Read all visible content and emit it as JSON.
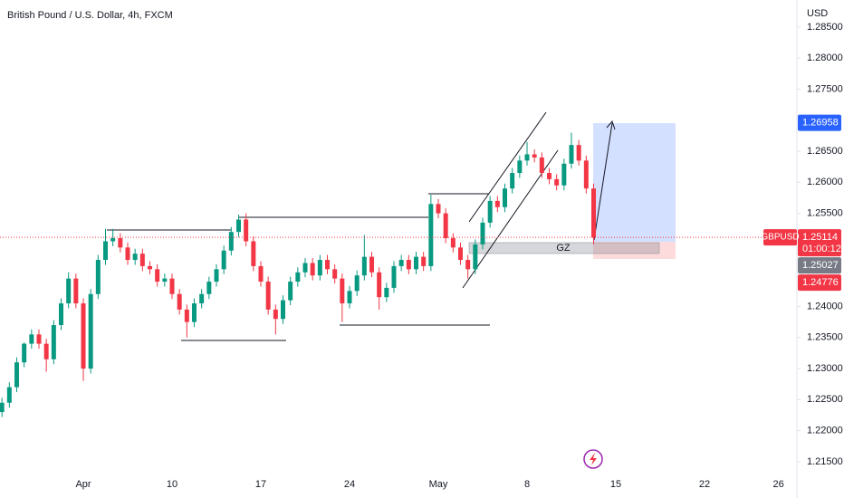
{
  "chart_data": {
    "type": "candlestick",
    "title": "British Pound / U.S. Dollar, 4h, FXCM",
    "y_unit": "USD",
    "zone_label": "GZ",
    "up_color": "#089981",
    "down_color": "#f23645",
    "ylim": [
      1.2128,
      1.2879
    ],
    "yticks": [
      {
        "value": 1.285,
        "label": "1.28500"
      },
      {
        "value": 1.28,
        "label": "1.28000"
      },
      {
        "value": 1.275,
        "label": "1.27500"
      },
      {
        "value": 1.265,
        "label": "1.26500"
      },
      {
        "value": 1.26,
        "label": "1.26000"
      },
      {
        "value": 1.255,
        "label": "1.25500"
      },
      {
        "value": 1.24,
        "label": "1.24000"
      },
      {
        "value": 1.235,
        "label": "1.23500"
      },
      {
        "value": 1.23,
        "label": "1.23000"
      },
      {
        "value": 1.225,
        "label": "1.22500"
      },
      {
        "value": 1.22,
        "label": "1.22000"
      },
      {
        "value": 1.215,
        "label": "1.21500"
      }
    ],
    "grid": false,
    "categories": [
      null,
      null,
      null,
      null,
      null,
      null,
      null,
      null,
      null,
      null,
      null,
      "Apr",
      null,
      null,
      null,
      null,
      null,
      null,
      null,
      null,
      null,
      null,
      null,
      "10",
      null,
      null,
      null,
      null,
      null,
      null,
      null,
      null,
      null,
      null,
      null,
      "17",
      null,
      null,
      null,
      null,
      null,
      null,
      null,
      null,
      null,
      null,
      null,
      "24",
      null,
      null,
      null,
      null,
      null,
      null,
      null,
      null,
      null,
      null,
      null,
      "May",
      null,
      null,
      null,
      null,
      null,
      null,
      null,
      null,
      null,
      null,
      null,
      "8",
      null,
      null,
      null,
      null,
      null,
      null,
      null,
      null,
      null,
      null,
      null,
      "15",
      null,
      null,
      null,
      null,
      null,
      null,
      null,
      null,
      null,
      null,
      null,
      "22",
      null,
      null,
      null,
      null,
      null,
      null,
      null,
      null,
      null,
      "26"
    ],
    "ohlc": [
      [
        1.223,
        1.2253,
        1.2222,
        1.2245
      ],
      [
        1.2245,
        1.2278,
        1.2237,
        1.227
      ],
      [
        1.227,
        1.2318,
        1.2262,
        1.231
      ],
      [
        1.231,
        1.2342,
        1.2302,
        1.234
      ],
      [
        1.234,
        1.2363,
        1.2332,
        1.2355
      ],
      [
        1.2355,
        1.2363,
        1.2332,
        1.234
      ],
      [
        1.234,
        1.2348,
        1.2295,
        1.2315
      ],
      [
        1.2315,
        1.2378,
        1.2307,
        1.237
      ],
      [
        1.237,
        1.2413,
        1.2362,
        1.2405
      ],
      [
        1.2405,
        1.2455,
        1.2397,
        1.2445
      ],
      [
        1.2445,
        1.2453,
        1.2397,
        1.2405
      ],
      [
        1.2405,
        1.2413,
        1.228,
        1.23
      ],
      [
        1.23,
        1.2428,
        1.2292,
        1.242
      ],
      [
        1.242,
        1.2483,
        1.2412,
        1.2475
      ],
      [
        1.2475,
        1.2525,
        1.2467,
        1.2505
      ],
      [
        1.2505,
        1.2525,
        1.2497,
        1.251
      ],
      [
        1.251,
        1.2518,
        1.2487,
        1.2495
      ],
      [
        1.2495,
        1.2503,
        1.2467,
        1.2475
      ],
      [
        1.2475,
        1.2493,
        1.2467,
        1.2485
      ],
      [
        1.2485,
        1.2493,
        1.2457,
        1.2465
      ],
      [
        1.2465,
        1.2473,
        1.2452,
        1.246
      ],
      [
        1.246,
        1.2468,
        1.2432,
        1.244
      ],
      [
        1.244,
        1.2453,
        1.2432,
        1.2445
      ],
      [
        1.2445,
        1.2453,
        1.2412,
        1.242
      ],
      [
        1.242,
        1.2428,
        1.2387,
        1.2395
      ],
      [
        1.2395,
        1.2403,
        1.235,
        1.2375
      ],
      [
        1.2375,
        1.2413,
        1.2367,
        1.2405
      ],
      [
        1.2405,
        1.2428,
        1.2397,
        1.242
      ],
      [
        1.242,
        1.2448,
        1.2412,
        1.244
      ],
      [
        1.244,
        1.2468,
        1.2432,
        1.246
      ],
      [
        1.246,
        1.2498,
        1.2452,
        1.249
      ],
      [
        1.249,
        1.2528,
        1.2482,
        1.252
      ],
      [
        1.252,
        1.2548,
        1.2512,
        1.254
      ],
      [
        1.254,
        1.255,
        1.2497,
        1.2505
      ],
      [
        1.2505,
        1.2513,
        1.2457,
        1.2465
      ],
      [
        1.2465,
        1.2473,
        1.2432,
        1.244
      ],
      [
        1.244,
        1.2448,
        1.2387,
        1.2395
      ],
      [
        1.2395,
        1.2403,
        1.2355,
        1.238
      ],
      [
        1.238,
        1.2418,
        1.2372,
        1.241
      ],
      [
        1.241,
        1.2448,
        1.2402,
        1.244
      ],
      [
        1.244,
        1.2463,
        1.2432,
        1.2455
      ],
      [
        1.2455,
        1.2478,
        1.2447,
        1.247
      ],
      [
        1.247,
        1.2478,
        1.2442,
        1.245
      ],
      [
        1.245,
        1.2483,
        1.2442,
        1.2475
      ],
      [
        1.2475,
        1.2483,
        1.2452,
        1.246
      ],
      [
        1.246,
        1.2468,
        1.2437,
        1.2445
      ],
      [
        1.2445,
        1.2453,
        1.2375,
        1.2405
      ],
      [
        1.2405,
        1.2433,
        1.2397,
        1.2425
      ],
      [
        1.2425,
        1.2458,
        1.2417,
        1.245
      ],
      [
        1.245,
        1.2515,
        1.2442,
        1.248
      ],
      [
        1.248,
        1.2488,
        1.2447,
        1.2455
      ],
      [
        1.2455,
        1.2463,
        1.2395,
        1.2415
      ],
      [
        1.2415,
        1.2438,
        1.2407,
        1.243
      ],
      [
        1.243,
        1.2473,
        1.2422,
        1.2465
      ],
      [
        1.2465,
        1.2483,
        1.2457,
        1.2475
      ],
      [
        1.2475,
        1.2483,
        1.2452,
        1.246
      ],
      [
        1.246,
        1.2488,
        1.2452,
        1.248
      ],
      [
        1.248,
        1.2488,
        1.2457,
        1.2465
      ],
      [
        1.2465,
        1.258,
        1.2457,
        1.2565
      ],
      [
        1.2565,
        1.2573,
        1.2542,
        1.255
      ],
      [
        1.255,
        1.2558,
        1.2502,
        1.251
      ],
      [
        1.251,
        1.2518,
        1.2487,
        1.2495
      ],
      [
        1.2495,
        1.2503,
        1.2467,
        1.2475
      ],
      [
        1.2475,
        1.2483,
        1.2445,
        1.246
      ],
      [
        1.246,
        1.2508,
        1.2452,
        1.25
      ],
      [
        1.25,
        1.2543,
        1.2492,
        1.2535
      ],
      [
        1.2535,
        1.2578,
        1.2527,
        1.257
      ],
      [
        1.257,
        1.2578,
        1.2552,
        1.256
      ],
      [
        1.256,
        1.2598,
        1.2552,
        1.259
      ],
      [
        1.259,
        1.2623,
        1.2582,
        1.2615
      ],
      [
        1.2615,
        1.2643,
        1.2607,
        1.2635
      ],
      [
        1.2635,
        1.2665,
        1.2627,
        1.2645
      ],
      [
        1.2645,
        1.2653,
        1.2632,
        1.264
      ],
      [
        1.264,
        1.2648,
        1.2607,
        1.2615
      ],
      [
        1.2615,
        1.2623,
        1.2597,
        1.2605
      ],
      [
        1.2605,
        1.2613,
        1.2587,
        1.2595
      ],
      [
        1.2595,
        1.2638,
        1.2587,
        1.263
      ],
      [
        1.263,
        1.268,
        1.2622,
        1.266
      ],
      [
        1.266,
        1.2668,
        1.2627,
        1.2635
      ],
      [
        1.2635,
        1.2643,
        1.2582,
        1.259
      ],
      [
        1.259,
        1.2598,
        1.25,
        1.2511
      ],
      null,
      null,
      null,
      null,
      null,
      null,
      null,
      null,
      null,
      null,
      null,
      null,
      null,
      null,
      null,
      null,
      null,
      null,
      null,
      null,
      null,
      null,
      null,
      null,
      null
    ],
    "price_labels": [
      {
        "value": 1.26958,
        "color": "#2962ff"
      },
      {
        "value": 1.25114,
        "color": "#f23645",
        "symbol": "GBPUSD",
        "countdown": "01:00:12"
      },
      {
        "value": 1.25027,
        "color": "#787b86"
      },
      {
        "value": 1.24776,
        "color": "#f23645"
      }
    ]
  }
}
